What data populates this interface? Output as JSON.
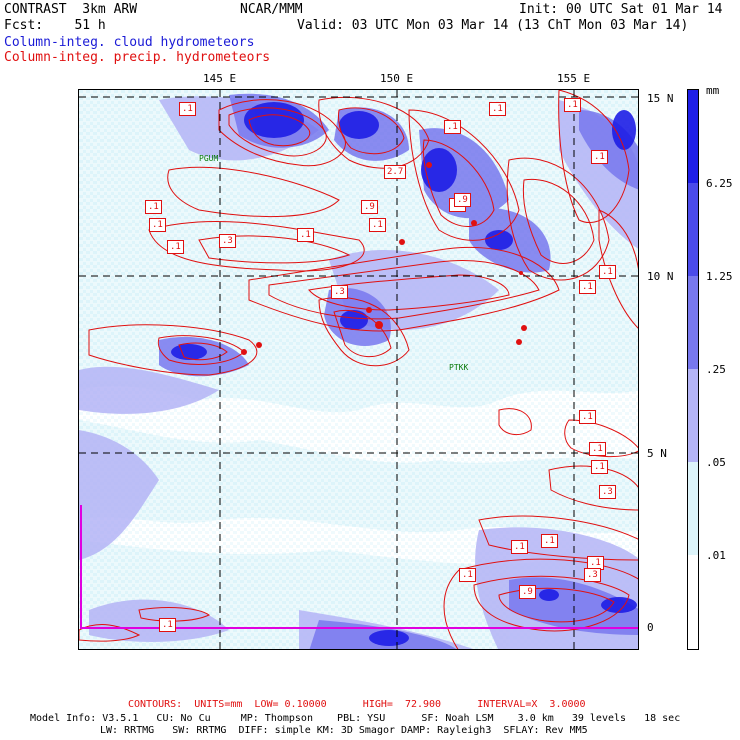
{
  "header": {
    "line1_left": "CONTRAST  3km ARW",
    "line1_mid": "NCAR/MMM",
    "line1_right": "Init: 00 UTC Sat 01 Mar 14",
    "line2_left": "Fcst:    51 h",
    "line2_right": "Valid: 03 UTC Mon 03 Mar 14 (13 ChT Mon 03 Mar 14)",
    "legend_blue": "Column-integ. cloud hydrometeors",
    "legend_red": "Column-integ. precip. hydrometeors"
  },
  "colors": {
    "blue_text": "#1a1ad6",
    "red_text": "#e01010",
    "contour": "#e01010",
    "grid": "#000000",
    "station": "#0a7a0a",
    "boundary": "#e000e0"
  },
  "map": {
    "lon_labels": [
      "145 E",
      "150 E",
      "155 E"
    ],
    "lat_labels": [
      "15 N",
      "10 N",
      "5 N",
      "0"
    ],
    "stations": [
      {
        "id": "PGUM",
        "label": "PGUM"
      },
      {
        "id": "PTKK",
        "label": "PTKK"
      }
    ],
    "contour_labels": [
      ".1",
      ".1",
      ".1",
      ".1",
      ".1",
      ".1",
      ".1",
      ".1",
      ".1",
      ".1",
      ".1",
      ".1",
      ".1",
      ".1",
      ".1",
      ".1",
      ".1",
      ".1",
      ".1",
      ".1",
      ".1",
      ".3",
      ".3",
      ".3",
      ".3",
      ".9",
      ".9",
      ".9",
      "2.7"
    ]
  },
  "colorbar": {
    "unit": "mm",
    "labels": [
      "6.25",
      "1.25",
      ".25",
      ".05",
      ".01"
    ],
    "colors": [
      "#1e1ee6",
      "#4b4bea",
      "#7878ee",
      "#b4b4f6",
      "#ddf4fa",
      "#ffffff"
    ]
  },
  "footer": {
    "contours_line": "CONTOURS:  UNITS=mm  LOW= 0.10000      HIGH=  72.900      INTERVAL=X  3.0000",
    "model_line1": "Model Info: V3.5.1   CU: No Cu     MP: Thompson    PBL: YSU      SF: Noah LSM    3.0 km   39 levels   18 sec",
    "model_line2": "LW: RRTMG   SW: RRTMG  DIFF: simple KM: 3D Smagor DAMP: Rayleigh3  SFLAY: Rev MM5"
  }
}
